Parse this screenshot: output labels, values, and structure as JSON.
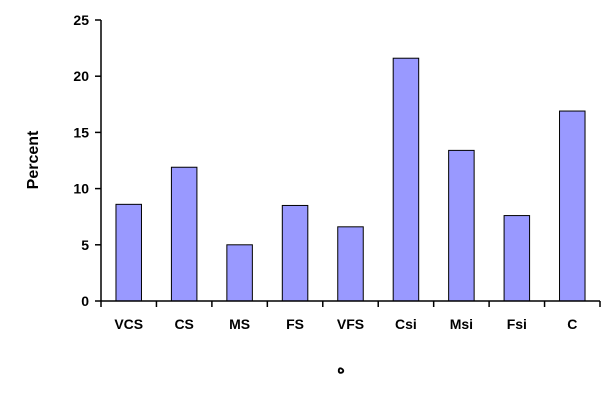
{
  "chart_data": {
    "type": "bar",
    "categories": [
      "VCS",
      "CS",
      "MS",
      "FS",
      "VFS",
      "Csi",
      "Msi",
      "Fsi",
      "C"
    ],
    "values": [
      8.6,
      11.9,
      5.0,
      8.5,
      6.6,
      21.6,
      13.4,
      7.6,
      16.9
    ],
    "title": "",
    "xlabel": "ه",
    "ylabel": "Percent",
    "ylim": [
      0,
      25
    ],
    "yticks": [
      0,
      5,
      10,
      15,
      20,
      25
    ],
    "grid": false,
    "legend": "none",
    "colors": {
      "bar_fill": "#9999ff",
      "bar_stroke": "#000000",
      "axis": "#000000",
      "text": "#000000"
    }
  }
}
